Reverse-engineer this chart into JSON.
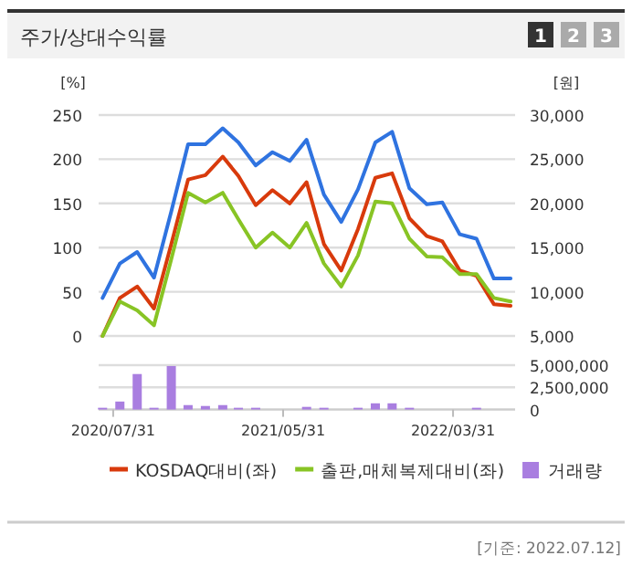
{
  "chart_data": [
    {
      "type": "line",
      "title": "주가/상대수익률",
      "ylabel": "[%]",
      "y2label": "[원]",
      "annotations": [
        "1",
        "2",
        "3"
      ],
      "x": [
        "2020-07-12",
        "2020-08-12",
        "2020-09-12",
        "2020-10-12",
        "2020-11-12",
        "2020-12-12",
        "2021-01-12",
        "2021-02-12",
        "2021-03-12",
        "2021-04-12",
        "2021-05-12",
        "2021-06-12",
        "2021-07-12",
        "2021-08-12",
        "2021-09-12",
        "2021-10-12",
        "2021-11-12",
        "2021-12-12",
        "2022-01-12",
        "2022-02-12",
        "2022-03-12",
        "2022-04-12",
        "2022-05-12",
        "2022-06-12",
        "2022-07-12"
      ],
      "xlim": [
        "2020-07-05",
        "2022-07-20"
      ],
      "ylim": [
        0,
        250
      ],
      "yticks": [
        0,
        50,
        100,
        150,
        200,
        250
      ],
      "y2lim": [
        5000,
        30000
      ],
      "y2ticks": [
        {
          "value": 5000,
          "label": "5,000"
        },
        {
          "value": 10000,
          "label": "10,000"
        },
        {
          "value": 15000,
          "label": "15,000"
        },
        {
          "value": 20000,
          "label": "20,000"
        },
        {
          "value": 25000,
          "label": "25,000"
        },
        {
          "value": 30000,
          "label": "30,000"
        }
      ],
      "tick_labels": "y",
      "grid": "y",
      "legend": "bottom",
      "marker": "none",
      "line_style": "solid",
      "series": [
        {
          "color": "#2f73e0",
          "axis": "y2",
          "values": [
            9300,
            13200,
            14500,
            11600,
            19100,
            26700,
            26700,
            28500,
            26900,
            24300,
            25800,
            24800,
            27200,
            21000,
            17900,
            21600,
            26900,
            28100,
            21700,
            19900,
            20100,
            16500,
            16000,
            11500,
            11500
          ]
        },
        {
          "name": "KOSDAQ대비(좌)",
          "color": "#d83a0c",
          "values": [
            0,
            43,
            56,
            31,
            104,
            177,
            182,
            203,
            181,
            148,
            165,
            150,
            174,
            104,
            74,
            121,
            179,
            184,
            133,
            113,
            107,
            74,
            68,
            36,
            34
          ]
        },
        {
          "name": "출판,매체복제대비(좌)",
          "color": "#88c425",
          "values": [
            0,
            39,
            29,
            12,
            87,
            162,
            151,
            162,
            132,
            100,
            117,
            100,
            128,
            82,
            56,
            91,
            152,
            150,
            110,
            90,
            89,
            70,
            70,
            43,
            39
          ]
        }
      ]
    },
    {
      "type": "bar",
      "annotations": [
        "[기준: 2022.07.12]"
      ],
      "x": [
        "2020-07-12",
        "2020-08-12",
        "2020-09-12",
        "2020-10-12",
        "2020-11-12",
        "2020-12-12",
        "2021-01-12",
        "2021-02-12",
        "2021-03-12",
        "2021-04-12",
        "2021-05-12",
        "2021-06-12",
        "2021-07-12",
        "2021-08-12",
        "2021-09-12",
        "2021-10-12",
        "2021-11-12",
        "2021-12-12",
        "2022-01-12",
        "2022-02-12",
        "2022-03-12",
        "2022-04-12",
        "2022-05-12",
        "2022-06-12",
        "2022-07-12"
      ],
      "xlim": [
        "2020-07-05",
        "2022-07-20"
      ],
      "xticks": [
        {
          "value": "2020-07-31",
          "label": "2020/07/31"
        },
        {
          "value": "2021-05-31",
          "label": "2021/05/31"
        },
        {
          "value": "2022-03-31",
          "label": "2022/03/31"
        }
      ],
      "y2lim": [
        0,
        5000000
      ],
      "y2ticks": [
        {
          "value": 0,
          "label": "0"
        },
        {
          "value": 2500000,
          "label": "2,500,000"
        },
        {
          "value": 5000000,
          "label": "5,000,000"
        }
      ],
      "grid": "y",
      "legend": "bottom",
      "series": [
        {
          "name": "거래량",
          "color": "#a97ee0",
          "axis": "y2",
          "values": [
            200000,
            900000,
            4000000,
            200000,
            4900000,
            500000,
            400000,
            500000,
            200000,
            200000,
            0,
            0,
            300000,
            200000,
            0,
            200000,
            700000,
            700000,
            200000,
            0,
            0,
            0,
            200000,
            0,
            0
          ]
        }
      ]
    }
  ]
}
